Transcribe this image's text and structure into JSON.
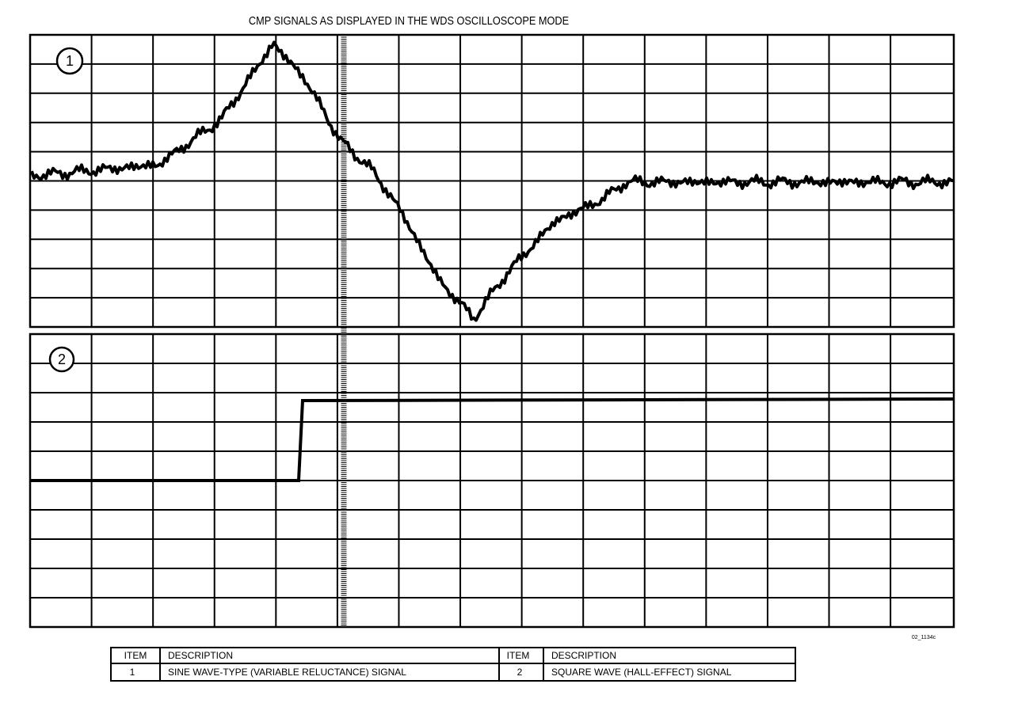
{
  "title": "CMP SIGNALS AS DISPLAYED IN THE WDS OSCILLOSCOPE MODE",
  "panels": [
    {
      "label": "1"
    },
    {
      "label": "2"
    }
  ],
  "figure_code": "02_1134c",
  "table": {
    "header": [
      "ITEM",
      "DESCRIPTION",
      "ITEM",
      "DESCRIPTION"
    ],
    "rows": [
      [
        "1",
        "SINE WAVE-TYPE (VARIABLE RELUCTANCE) SIGNAL",
        "2",
        "SQUARE WAVE (HALL-EFFECT) SIGNAL"
      ]
    ]
  }
}
